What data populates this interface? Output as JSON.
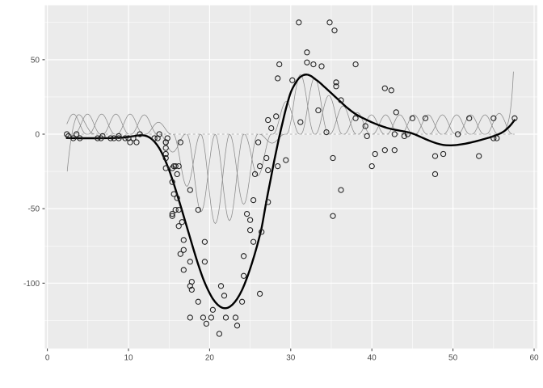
{
  "chart_data": {
    "type": "scatter",
    "title": "",
    "xlabel": "",
    "ylabel": "",
    "grid": "on",
    "legend": "none",
    "panel_bg": "#EBEBEB",
    "x_axis": {
      "range": [
        -0.36,
        60.36
      ],
      "ticks": [
        0,
        10,
        20,
        30,
        40,
        50,
        60
      ],
      "tick_labels": [
        "0",
        "10",
        "20",
        "30",
        "40",
        "50",
        "60"
      ],
      "minor_ticks": [
        5,
        15,
        25,
        35,
        45,
        55
      ]
    },
    "y_axis": {
      "range": [
        -144.5,
        85.5
      ],
      "ticks": [
        50,
        0,
        -50,
        -100
      ],
      "tick_labels": [
        "50",
        "0",
        "-50",
        "-100"
      ],
      "minor_ticks": [
        75,
        25,
        -25,
        -75,
        -125
      ]
    },
    "points": [
      [
        2.4,
        0
      ],
      [
        2.6,
        -1.3
      ],
      [
        3.2,
        -2.7
      ],
      [
        3.6,
        0
      ],
      [
        4,
        -2.7
      ],
      [
        6.2,
        -2.7
      ],
      [
        6.6,
        -2.7
      ],
      [
        6.8,
        -1.3
      ],
      [
        7.8,
        -2.7
      ],
      [
        8.2,
        -2.7
      ],
      [
        8.8,
        -1.3
      ],
      [
        8.8,
        -2.7
      ],
      [
        9.6,
        -2.7
      ],
      [
        10,
        -2.7
      ],
      [
        10.2,
        -5.4
      ],
      [
        10.6,
        -2.7
      ],
      [
        11,
        -5.4
      ],
      [
        11.4,
        0
      ],
      [
        13.2,
        -2.7
      ],
      [
        13.6,
        -2.7
      ],
      [
        13.8,
        0
      ],
      [
        14.6,
        -13.3
      ],
      [
        14.6,
        -5.4
      ],
      [
        14.6,
        -5.4
      ],
      [
        14.6,
        -9.3
      ],
      [
        14.6,
        -16
      ],
      [
        14.6,
        -22.8
      ],
      [
        14.8,
        -2.7
      ],
      [
        15.4,
        -22.8
      ],
      [
        15.4,
        -32.1
      ],
      [
        15.4,
        -53.5
      ],
      [
        15.4,
        -54.9
      ],
      [
        15.6,
        -40.2
      ],
      [
        15.6,
        -21.5
      ],
      [
        15.8,
        -21.5
      ],
      [
        15.8,
        -50.8
      ],
      [
        16,
        -42.9
      ],
      [
        16,
        -26.8
      ],
      [
        16.2,
        -21.5
      ],
      [
        16.2,
        -50.8
      ],
      [
        16.2,
        -61.7
      ],
      [
        16.4,
        -5.4
      ],
      [
        16.4,
        -80.4
      ],
      [
        16.6,
        -59
      ],
      [
        16.8,
        -71
      ],
      [
        16.8,
        -91.1
      ],
      [
        16.8,
        -77.7
      ],
      [
        17.6,
        -37.5
      ],
      [
        17.6,
        -85.6
      ],
      [
        17.6,
        -123.1
      ],
      [
        17.6,
        -101.9
      ],
      [
        17.8,
        -99.1
      ],
      [
        17.8,
        -104.4
      ],
      [
        18.6,
        -112.5
      ],
      [
        18.6,
        -50.8
      ],
      [
        19.2,
        -123.1
      ],
      [
        19.4,
        -85.6
      ],
      [
        19.4,
        -72.3
      ],
      [
        19.6,
        -127.2
      ],
      [
        20.2,
        -123.1
      ],
      [
        20.4,
        -117.9
      ],
      [
        21.2,
        -134
      ],
      [
        21.4,
        -101.9
      ],
      [
        21.8,
        -108.4
      ],
      [
        22,
        -123.1
      ],
      [
        23.2,
        -123.1
      ],
      [
        23.4,
        -128.5
      ],
      [
        24,
        -112.5
      ],
      [
        24.2,
        -95.1
      ],
      [
        24.2,
        -81.8
      ],
      [
        24.6,
        -53.5
      ],
      [
        25,
        -64.4
      ],
      [
        25,
        -57.6
      ],
      [
        25.4,
        -72.3
      ],
      [
        25.4,
        -44.3
      ],
      [
        25.6,
        -26.8
      ],
      [
        26,
        -5.4
      ],
      [
        26.2,
        -107.1
      ],
      [
        26.2,
        -21.5
      ],
      [
        26.4,
        -65.6
      ],
      [
        27,
        -16
      ],
      [
        27.2,
        -45.6
      ],
      [
        27.2,
        -24.2
      ],
      [
        27.2,
        9.5
      ],
      [
        27.6,
        4
      ],
      [
        28.2,
        12
      ],
      [
        28.4,
        -21.5
      ],
      [
        28.4,
        37.5
      ],
      [
        28.6,
        46.9
      ],
      [
        29.4,
        -17.4
      ],
      [
        30.2,
        36.2
      ],
      [
        31,
        75
      ],
      [
        31.2,
        8.1
      ],
      [
        32,
        54.9
      ],
      [
        32,
        48.2
      ],
      [
        32.8,
        46.9
      ],
      [
        33.4,
        16
      ],
      [
        33.8,
        45.6
      ],
      [
        34.4,
        1.3
      ],
      [
        34.8,
        75
      ],
      [
        35.2,
        -16
      ],
      [
        35.2,
        -54.9
      ],
      [
        35.4,
        69.6
      ],
      [
        35.6,
        34.8
      ],
      [
        35.6,
        32.1
      ],
      [
        36.2,
        -37.5
      ],
      [
        36.2,
        22.8
      ],
      [
        38,
        46.9
      ],
      [
        38,
        10.7
      ],
      [
        39.2,
        5.4
      ],
      [
        39.4,
        -1.3
      ],
      [
        40,
        -21.5
      ],
      [
        40.4,
        -13.3
      ],
      [
        41.6,
        30.8
      ],
      [
        41.6,
        -10.7
      ],
      [
        42.4,
        29.4
      ],
      [
        42.8,
        0
      ],
      [
        42.8,
        -10.7
      ],
      [
        43,
        14.7
      ],
      [
        44,
        -1.3
      ],
      [
        44.4,
        0
      ],
      [
        45,
        10.7
      ],
      [
        46.6,
        10.7
      ],
      [
        47.8,
        -26.8
      ],
      [
        47.8,
        -14.7
      ],
      [
        48.8,
        -13.3
      ],
      [
        50.6,
        0
      ],
      [
        52,
        10.7
      ],
      [
        53.2,
        -14.7
      ],
      [
        55,
        -2.7
      ],
      [
        55,
        10.7
      ],
      [
        55.4,
        -2.7
      ],
      [
        57.6,
        10.7
      ]
    ],
    "smooth_curve": [
      [
        2.4,
        -2.6
      ],
      [
        4,
        -2.7
      ],
      [
        6,
        -2.7
      ],
      [
        8,
        -2.6
      ],
      [
        9.5,
        -2.2
      ],
      [
        10.5,
        -1.4
      ],
      [
        11.3,
        -0.8
      ],
      [
        12,
        -0.9
      ],
      [
        12.6,
        -2.2
      ],
      [
        13.2,
        -5
      ],
      [
        13.8,
        -9.5
      ],
      [
        14.4,
        -16
      ],
      [
        15,
        -24
      ],
      [
        15.6,
        -33.5
      ],
      [
        16.2,
        -44
      ],
      [
        16.8,
        -55
      ],
      [
        17.4,
        -66
      ],
      [
        18,
        -77
      ],
      [
        18.6,
        -87.5
      ],
      [
        19.2,
        -97
      ],
      [
        19.8,
        -104.5
      ],
      [
        20.4,
        -110.5
      ],
      [
        21,
        -114.5
      ],
      [
        21.6,
        -116.6
      ],
      [
        22.2,
        -116.6
      ],
      [
        22.8,
        -114.5
      ],
      [
        23.4,
        -110.5
      ],
      [
        24,
        -104.5
      ],
      [
        24.6,
        -96.5
      ],
      [
        25.2,
        -87
      ],
      [
        25.8,
        -76
      ],
      [
        26.4,
        -63
      ],
      [
        27,
        -45
      ],
      [
        27.5,
        -31
      ],
      [
        28,
        -17
      ],
      [
        28.5,
        -4
      ],
      [
        29,
        8
      ],
      [
        29.5,
        19
      ],
      [
        30,
        28
      ],
      [
        30.5,
        33.5
      ],
      [
        31,
        37.5
      ],
      [
        31.5,
        39.5
      ],
      [
        32,
        40
      ],
      [
        32.5,
        39
      ],
      [
        33,
        37
      ],
      [
        33.5,
        35
      ],
      [
        34,
        32.5
      ],
      [
        35,
        27.5
      ],
      [
        36,
        22.5
      ],
      [
        37,
        17.5
      ],
      [
        38,
        13.5
      ],
      [
        39,
        10.5
      ],
      [
        40,
        8
      ],
      [
        41,
        5.8
      ],
      [
        42,
        4
      ],
      [
        43,
        2.8
      ],
      [
        44,
        1.8
      ],
      [
        45,
        0.5
      ],
      [
        46,
        -1.8
      ],
      [
        47,
        -4.2
      ],
      [
        48,
        -6.2
      ],
      [
        48.8,
        -7.2
      ],
      [
        49.6,
        -7.5
      ],
      [
        50.5,
        -7.2
      ],
      [
        51.5,
        -6.4
      ],
      [
        52.5,
        -5.2
      ],
      [
        53.5,
        -3.8
      ],
      [
        54.5,
        -2.2
      ],
      [
        55.5,
        -0.3
      ],
      [
        56.3,
        2
      ],
      [
        57,
        5.5
      ],
      [
        57.6,
        9.5
      ]
    ],
    "basis_functions": {
      "comment": "weighted spline basis humps: [center, amplitude]",
      "x_clip": [
        2.4,
        57.6
      ],
      "humps": [
        [
          3.2,
          13.5
        ],
        [
          4.95,
          13.5
        ],
        [
          6.7,
          13.5
        ],
        [
          8.45,
          13.5
        ],
        [
          10.2,
          13.5
        ],
        [
          11.95,
          13
        ],
        [
          13.7,
          8
        ],
        [
          15.45,
          -12
        ],
        [
          17.2,
          -35
        ],
        [
          18.95,
          -52
        ],
        [
          20.7,
          -60
        ],
        [
          22.45,
          -58
        ],
        [
          24.2,
          -47
        ],
        [
          25.95,
          -28
        ],
        [
          27.7,
          -6
        ],
        [
          29.45,
          22
        ],
        [
          31.2,
          40
        ],
        [
          32.95,
          38
        ],
        [
          34.7,
          26
        ],
        [
          36.45,
          19
        ],
        [
          38.2,
          14.5
        ],
        [
          39.95,
          13
        ],
        [
          41.7,
          13
        ],
        [
          43.45,
          13
        ],
        [
          45.2,
          13
        ],
        [
          46.95,
          13
        ],
        [
          48.7,
          13
        ],
        [
          50.45,
          13
        ],
        [
          52.2,
          13
        ],
        [
          53.95,
          13
        ],
        [
          55.7,
          14
        ]
      ],
      "left_boundary_curve": [
        [
          2.45,
          -25
        ],
        [
          2.6,
          -17
        ],
        [
          2.8,
          -8
        ],
        [
          3.0,
          -1
        ],
        [
          3.2,
          5
        ],
        [
          3.5,
          10.5
        ],
        [
          3.8,
          13
        ],
        [
          4.2,
          12
        ],
        [
          4.6,
          8
        ],
        [
          5.0,
          4
        ],
        [
          5.4,
          1
        ],
        [
          5.8,
          0
        ]
      ],
      "right_boundary_spike": [
        [
          55.9,
          0
        ],
        [
          56.3,
          2
        ],
        [
          56.7,
          6
        ],
        [
          57.0,
          13
        ],
        [
          57.2,
          22
        ],
        [
          57.35,
          32
        ],
        [
          57.45,
          42
        ]
      ],
      "zero_reference_line": {
        "x1": 2.4,
        "x2": 57.6,
        "y": 0,
        "dashed": true
      }
    },
    "colors": {
      "panel_bg": "#EBEBEB",
      "grid_major": "#FFFFFF",
      "grid_minor": "#F7F7F7",
      "basis_line": "#8A8A8A",
      "zero_line": "#9A9A9A",
      "smooth_line": "#000000",
      "point_stroke": "#1F1F1F",
      "tick_text": "#4D4D4D",
      "tick_mark": "#333333"
    }
  }
}
